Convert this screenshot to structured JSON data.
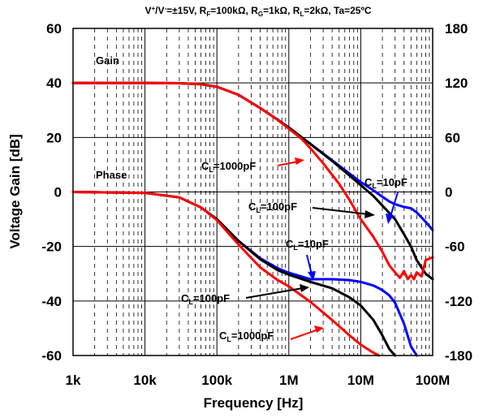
{
  "chart_data": {
    "type": "line",
    "conditions_title": {
      "v": "V",
      "v_sup": "+",
      "slash": "/V",
      "v_sup2": "-",
      "rest1": "=±15V, R",
      "rf_sub": "F",
      "rest2": "=100kΩ, R",
      "rg_sub": "G",
      "rest3": "=1kΩ, R",
      "rl_sub": "L",
      "rest4": "=2kΩ, Ta=25ºC"
    },
    "xlabel": "Frequency [Hz]",
    "ylabel": "Voltage Gain [dB]",
    "y2label": "",
    "x_scale": "log",
    "xlim": [
      1000,
      100000000
    ],
    "ylim": [
      -60,
      60
    ],
    "y2lim": [
      -180,
      180
    ],
    "x_ticks": [
      {
        "value": 1000,
        "label": "1k"
      },
      {
        "value": 10000,
        "label": "10k"
      },
      {
        "value": 100000,
        "label": "100k"
      },
      {
        "value": 1000000,
        "label": "1M"
      },
      {
        "value": 10000000,
        "label": "10M"
      },
      {
        "value": 100000000,
        "label": "100M"
      }
    ],
    "y_ticks": [
      {
        "value": 60,
        "label": "60"
      },
      {
        "value": 40,
        "label": "40"
      },
      {
        "value": 20,
        "label": "20"
      },
      {
        "value": 0,
        "label": "0"
      },
      {
        "value": -20,
        "label": "-20"
      },
      {
        "value": -40,
        "label": "-40"
      },
      {
        "value": -60,
        "label": "-60"
      }
    ],
    "y2_ticks": [
      {
        "value": 180,
        "label": "180"
      },
      {
        "value": 120,
        "label": "120"
      },
      {
        "value": 60,
        "label": "60"
      },
      {
        "value": 0,
        "label": "0"
      },
      {
        "value": -60,
        "label": "-60"
      },
      {
        "value": -120,
        "label": "-120"
      },
      {
        "value": -180,
        "label": "-180"
      }
    ],
    "grid": true,
    "series": [
      {
        "group": "Gain",
        "load": "10pF",
        "color": "#0000ff",
        "axis": "left",
        "points": [
          [
            1000,
            40
          ],
          [
            10000,
            40
          ],
          [
            30000,
            39.9
          ],
          [
            60000,
            39.5
          ],
          [
            100000,
            38.6
          ],
          [
            200000,
            35.6
          ],
          [
            400000,
            30.8
          ],
          [
            700000,
            26.5
          ],
          [
            1000000,
            23.6
          ],
          [
            2000000,
            17.6
          ],
          [
            4000000,
            11.6
          ],
          [
            7000000,
            6.7
          ],
          [
            10000000,
            3.6
          ],
          [
            15000000,
            0.6
          ],
          [
            20000000,
            -1.8
          ],
          [
            25000000,
            -3.5
          ],
          [
            30000000,
            -4.5
          ],
          [
            40000000,
            -5.5
          ],
          [
            50000000,
            -6
          ],
          [
            60000000,
            -7.5
          ],
          [
            80000000,
            -11
          ],
          [
            100000000,
            -14
          ]
        ]
      },
      {
        "group": "Gain",
        "load": "100pF",
        "color": "#000000",
        "axis": "left",
        "points": [
          [
            1000,
            40
          ],
          [
            10000,
            40
          ],
          [
            30000,
            39.9
          ],
          [
            60000,
            39.5
          ],
          [
            100000,
            38.6
          ],
          [
            200000,
            35.6
          ],
          [
            400000,
            30.8
          ],
          [
            700000,
            26.5
          ],
          [
            1000000,
            23.6
          ],
          [
            2000000,
            17.6
          ],
          [
            4000000,
            11.4
          ],
          [
            7000000,
            6
          ],
          [
            10000000,
            2.5
          ],
          [
            15000000,
            -1.5
          ],
          [
            20000000,
            -5
          ],
          [
            30000000,
            -10
          ],
          [
            40000000,
            -15.5
          ],
          [
            50000000,
            -20
          ],
          [
            60000000,
            -25
          ],
          [
            80000000,
            -30
          ],
          [
            100000000,
            -32
          ]
        ]
      },
      {
        "group": "Gain",
        "load": "1000pF",
        "color": "#ff0000",
        "axis": "left",
        "points": [
          [
            1000,
            40
          ],
          [
            10000,
            40
          ],
          [
            30000,
            39.9
          ],
          [
            60000,
            39.5
          ],
          [
            100000,
            38.6
          ],
          [
            200000,
            35.6
          ],
          [
            400000,
            30.8
          ],
          [
            700000,
            26.4
          ],
          [
            1000000,
            23.2
          ],
          [
            1500000,
            19.5
          ],
          [
            2000000,
            16
          ],
          [
            3000000,
            10.5
          ],
          [
            5000000,
            3
          ],
          [
            7000000,
            -3
          ],
          [
            10000000,
            -10
          ],
          [
            15000000,
            -16.5
          ],
          [
            20000000,
            -22
          ],
          [
            25000000,
            -27
          ],
          [
            30000000,
            -29.5
          ],
          [
            35000000,
            -31.5
          ],
          [
            40000000,
            -29
          ],
          [
            45000000,
            -32
          ],
          [
            50000000,
            -30.5
          ],
          [
            55000000,
            -32
          ],
          [
            60000000,
            -29.5
          ],
          [
            70000000,
            -31
          ],
          [
            80000000,
            -25
          ],
          [
            100000000,
            -24
          ]
        ]
      },
      {
        "group": "Phase",
        "load": "10pF",
        "color": "#0000ff",
        "axis": "right",
        "points": [
          [
            1000,
            0
          ],
          [
            10000,
            -1
          ],
          [
            30000,
            -6
          ],
          [
            60000,
            -17
          ],
          [
            100000,
            -30
          ],
          [
            200000,
            -54
          ],
          [
            400000,
            -73
          ],
          [
            700000,
            -84
          ],
          [
            1000000,
            -89
          ],
          [
            2000000,
            -96
          ],
          [
            4000000,
            -96
          ],
          [
            7000000,
            -97
          ],
          [
            10000000,
            -99
          ],
          [
            15000000,
            -103
          ],
          [
            20000000,
            -108
          ],
          [
            25000000,
            -114
          ],
          [
            30000000,
            -122
          ],
          [
            40000000,
            -145
          ],
          [
            50000000,
            -170
          ],
          [
            60000000,
            -180
          ]
        ]
      },
      {
        "group": "Phase",
        "load": "100pF",
        "color": "#000000",
        "axis": "right",
        "points": [
          [
            1000,
            0
          ],
          [
            10000,
            -1
          ],
          [
            30000,
            -6
          ],
          [
            60000,
            -17
          ],
          [
            100000,
            -30
          ],
          [
            200000,
            -54
          ],
          [
            400000,
            -74
          ],
          [
            700000,
            -86
          ],
          [
            1000000,
            -91
          ],
          [
            2000000,
            -99
          ],
          [
            4000000,
            -106
          ],
          [
            7000000,
            -116
          ],
          [
            10000000,
            -125
          ],
          [
            15000000,
            -141
          ],
          [
            20000000,
            -158
          ],
          [
            25000000,
            -173
          ],
          [
            30000000,
            -180
          ]
        ]
      },
      {
        "group": "Phase",
        "load": "1000pF",
        "color": "#ff0000",
        "axis": "right",
        "points": [
          [
            1000,
            0
          ],
          [
            10000,
            -1
          ],
          [
            30000,
            -6
          ],
          [
            60000,
            -17
          ],
          [
            100000,
            -31
          ],
          [
            200000,
            -58
          ],
          [
            400000,
            -83
          ],
          [
            700000,
            -97
          ],
          [
            1000000,
            -104
          ],
          [
            2000000,
            -121
          ],
          [
            4000000,
            -141
          ],
          [
            7000000,
            -158
          ],
          [
            10000000,
            -168
          ],
          [
            15000000,
            -177
          ],
          [
            18000000,
            -180
          ]
        ]
      }
    ],
    "annotations": [
      {
        "id": "gain-label",
        "text": "Gain"
      },
      {
        "id": "phase-label",
        "text": "Phase"
      },
      {
        "id": "gain-1000pf",
        "prefix": "C",
        "sub": "L",
        "suffix": "=1000pF",
        "color": "#ff0000"
      },
      {
        "id": "gain-10pf",
        "prefix": "C",
        "sub": "L",
        "suffix": "=10pF",
        "color": "#0000ff"
      },
      {
        "id": "gain-100pf",
        "prefix": "C",
        "sub": "L",
        "suffix": "=100pF",
        "color": "#000000"
      },
      {
        "id": "phase-10pf",
        "prefix": "C",
        "sub": "L",
        "suffix": "=10pF",
        "color": "#0000ff"
      },
      {
        "id": "phase-100pf",
        "prefix": "C",
        "sub": "L",
        "suffix": "=100pF",
        "color": "#000000"
      },
      {
        "id": "phase-1000pf",
        "prefix": "C",
        "sub": "L",
        "suffix": "=1000pF",
        "color": "#ff0000"
      }
    ]
  }
}
